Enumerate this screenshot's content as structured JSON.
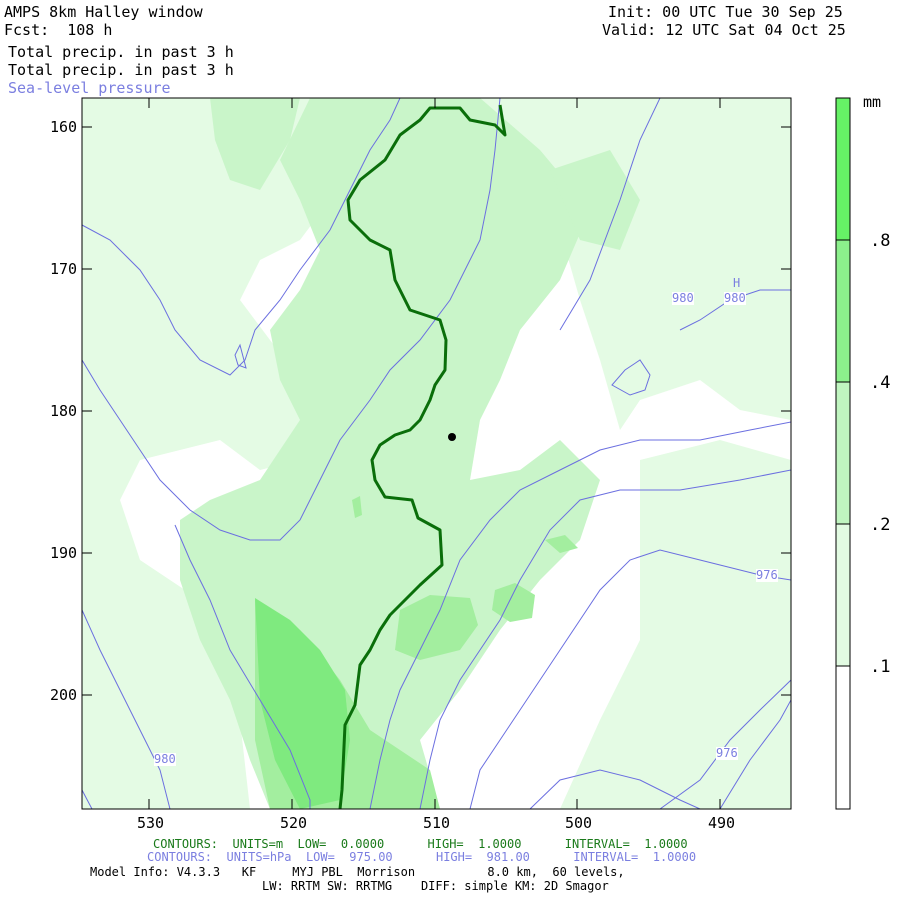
{
  "header": {
    "title": "AMPS 8km Halley window",
    "forecast": "Fcst:  108 h",
    "init": "Init: 00 UTC Tue 30 Sep 25",
    "valid": "Valid: 12 UTC Sat 04 Oct 25",
    "line1": "Total precip. in past 3 h",
    "line2": "Total precip. in past 3 h",
    "line3": "Sea-level pressure"
  },
  "map": {
    "y_ticks": [
      "160",
      "170",
      "180",
      "190",
      "200"
    ],
    "x_ticks": [
      "530",
      "520",
      "510",
      "500",
      "490"
    ],
    "pressure_labels": [
      "980",
      "980",
      "980",
      "976",
      "976"
    ],
    "high_marker": "H"
  },
  "colorbar": {
    "unit": "mm",
    "labels": [
      ".8",
      ".4",
      ".2",
      ".1"
    ],
    "fill_colors": [
      "#66f266",
      "#8cf08c",
      "#c0f5c0",
      "#e2fbe2",
      "#ffffff"
    ]
  },
  "footer": {
    "contours_green": "CONTOURS:  UNITS=m  LOW=  0.0000      HIGH=  1.0000      INTERVAL=  1.0000",
    "contours_blue": "CONTOURS:  UNITS=hPa  LOW=  975.00      HIGH=  981.00      INTERVAL=  1.0000",
    "model_info": "Model Info: V4.3.3   KF     MYJ PBL  Morrison          8.0 km,  60 levels,",
    "model_info2": "LW: RRTM SW: RRTMG    DIFF: simple KM: 2D Smagor"
  },
  "colors": {
    "pressure": "#6b6fe0",
    "coast": "#0a6e0a",
    "light": "#e4fbe4",
    "medium": "#c9f5c9",
    "strong": "#a3ee9f",
    "heavy": "#7fea7f"
  }
}
